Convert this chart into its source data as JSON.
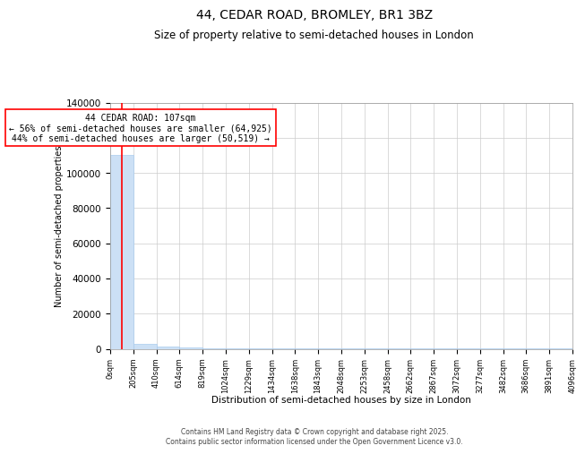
{
  "title": "44, CEDAR ROAD, BROMLEY, BR1 3BZ",
  "subtitle": "Size of property relative to semi-detached houses in London",
  "xlabel": "Distribution of semi-detached houses by size in London",
  "ylabel": "Number of semi-detached properties",
  "footer_line1": "Contains HM Land Registry data © Crown copyright and database right 2025.",
  "footer_line2": "Contains public sector information licensed under the Open Government Licence v3.0.",
  "annotation_title": "44 CEDAR ROAD: 107sqm",
  "annotation_line1": "← 56% of semi-detached houses are smaller (64,925)",
  "annotation_line2": "44% of semi-detached houses are larger (50,519) →",
  "property_size_sqm": 107,
  "ylim": [
    0,
    140000
  ],
  "bar_color": "#cce0f5",
  "bar_edge_color": "#aaccee",
  "marker_color": "red",
  "annotation_box_color": "red",
  "background_color": "#ffffff",
  "grid_color": "#cccccc",
  "bin_edges": [
    0,
    205,
    410,
    614,
    819,
    1024,
    1229,
    1434,
    1638,
    1843,
    2048,
    2253,
    2458,
    2662,
    2867,
    3072,
    3277,
    3482,
    3686,
    3891,
    4096
  ],
  "bin_counts": [
    110000,
    3000,
    1500,
    800,
    400,
    200,
    100,
    60,
    40,
    20,
    15,
    10,
    8,
    6,
    5,
    4,
    3,
    3,
    2,
    2
  ],
  "tick_labels": [
    "0sqm",
    "205sqm",
    "410sqm",
    "614sqm",
    "819sqm",
    "1024sqm",
    "1229sqm",
    "1434sqm",
    "1638sqm",
    "1843sqm",
    "2048sqm",
    "2253sqm",
    "2458sqm",
    "2662sqm",
    "2867sqm",
    "3072sqm",
    "3277sqm",
    "3482sqm",
    "3686sqm",
    "3891sqm",
    "4096sqm"
  ],
  "yticks": [
    0,
    20000,
    40000,
    60000,
    80000,
    100000,
    120000,
    140000
  ],
  "title_fontsize": 10,
  "subtitle_fontsize": 8.5,
  "ylabel_fontsize": 7,
  "xlabel_fontsize": 7.5,
  "ytick_fontsize": 7.5,
  "xtick_fontsize": 6,
  "annotation_fontsize": 7,
  "footer_fontsize": 5.5
}
